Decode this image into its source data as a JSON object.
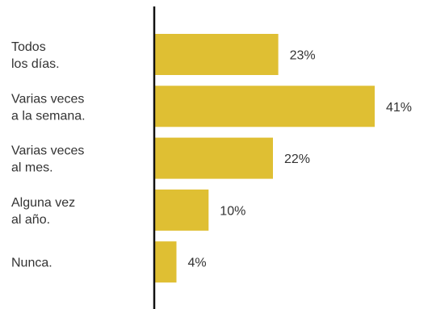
{
  "chart_data": {
    "type": "bar",
    "orientation": "horizontal",
    "categories": [
      [
        "Todos",
        "los días."
      ],
      [
        "Varias veces",
        "a la semana."
      ],
      [
        "Varias veces",
        "al mes."
      ],
      [
        "Alguna vez",
        "al año."
      ],
      [
        "Nunca."
      ]
    ],
    "values": [
      23,
      41,
      22,
      10,
      4
    ],
    "value_labels": [
      "23%",
      "41%",
      "22%",
      "10%",
      "4%"
    ],
    "unit": "%",
    "title": "",
    "xlabel": "",
    "ylabel": "",
    "xlim": [
      0,
      41
    ],
    "grid": false,
    "colors": {
      "bar": "#DFBF33",
      "axis": "#111111",
      "text": "#333333"
    }
  }
}
